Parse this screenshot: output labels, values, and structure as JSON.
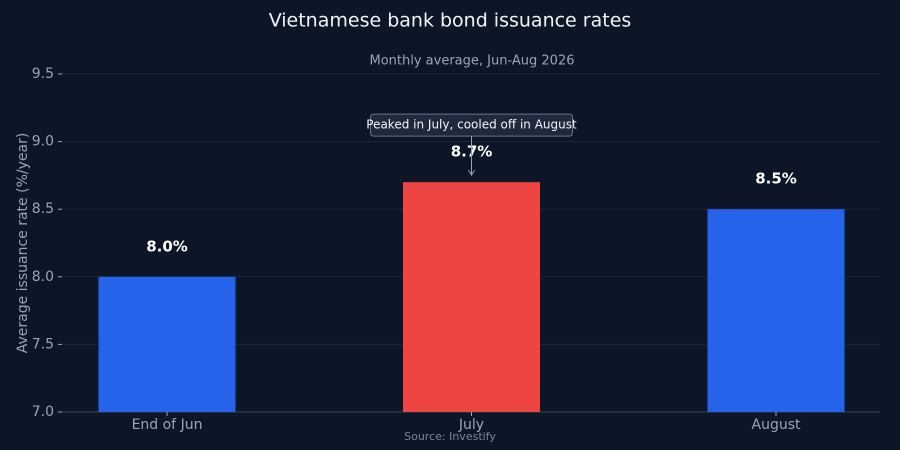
{
  "chart_data": {
    "type": "bar",
    "title": "Vietnamese bank bond issuance rates",
    "subtitle": "Monthly average, Jun-Aug 2026",
    "y_label": "Average issuance rate (%/year)",
    "source": "Source: Investify",
    "annotation": "Peaked in July, cooled off in August",
    "categories": [
      "End of Jun",
      "July",
      "August"
    ],
    "values": [
      8.0,
      8.7,
      8.5
    ],
    "value_labels": [
      "8.0%",
      "8.7%",
      "8.5%"
    ],
    "colors": [
      "#2563eb",
      "#ef4444",
      "#2563eb"
    ],
    "ylim": [
      7.0,
      9.5
    ],
    "yticks": [
      {
        "value": 7,
        "label": "7.0"
      },
      {
        "value": 7.5,
        "label": "7.5"
      },
      {
        "value": 8,
        "label": "8.0"
      },
      {
        "value": 8.5,
        "label": "8.5"
      },
      {
        "value": 9,
        "label": "9.0"
      },
      {
        "value": 9.5,
        "label": "9.5"
      }
    ],
    "grid": true
  }
}
